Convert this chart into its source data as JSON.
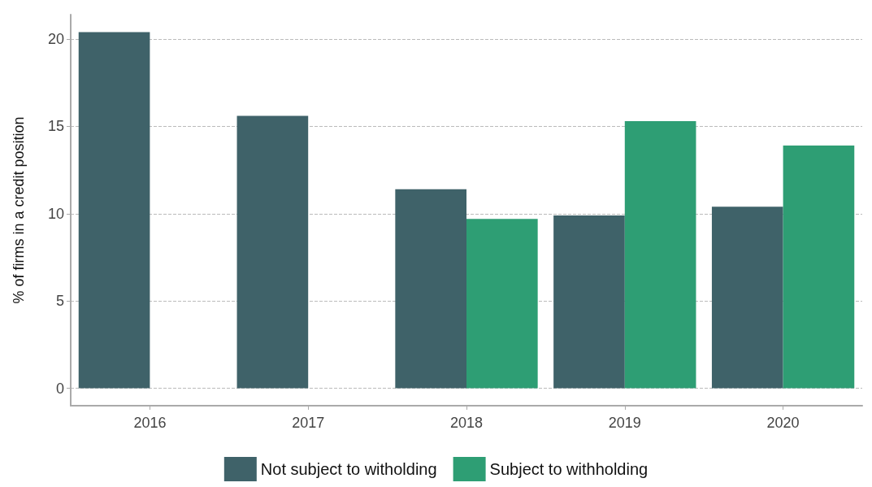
{
  "chart_data": {
    "type": "bar",
    "ylabel": "% of firms in a credit position",
    "categories": [
      "2016",
      "2017",
      "2018",
      "2019",
      "2020"
    ],
    "series": [
      {
        "name": "Not subject to witholding",
        "color": "#3f6269",
        "values": [
          20.4,
          15.6,
          11.4,
          9.9,
          10.4
        ]
      },
      {
        "name": "Subject to withholding",
        "color": "#2e9e74",
        "values": [
          null,
          null,
          9.7,
          15.3,
          13.9
        ]
      }
    ],
    "ylim": [
      -1,
      21.4
    ],
    "yticks": [
      0,
      5,
      10,
      15,
      20
    ],
    "grid": "y",
    "legend": "bottom"
  }
}
